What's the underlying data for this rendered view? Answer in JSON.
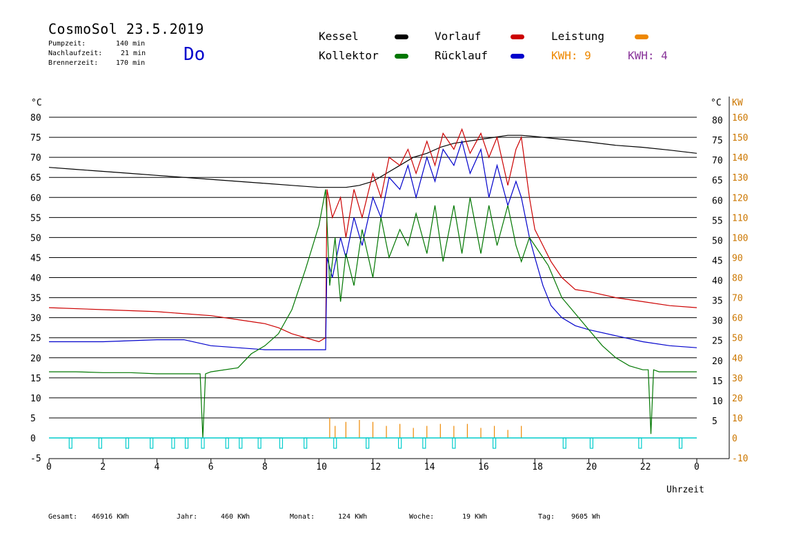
{
  "header": {
    "title": "CosmoSol 23.5.2019",
    "pump_label": "Pumpzeit:",
    "pump_value": "140 min",
    "nach_label": "Nachlaufzeit:",
    "nach_value": "21 min",
    "brenner_label": "Brennerzeit:",
    "brenner_value": "170 min",
    "day": "Do"
  },
  "legend": {
    "kessel": "Kessel",
    "kollektor": "Kollektor",
    "vorlauf": "Vorlauf",
    "ruecklauf": "Rücklauf",
    "leistung": "Leistung",
    "kwh1": "KWH: 9",
    "kwh2": "KWH: 4"
  },
  "colors": {
    "kessel": "#000000",
    "kollektor": "#007700",
    "vorlauf": "#cc0000",
    "ruecklauf": "#0000cc",
    "leistung": "#ee8800",
    "kwh2": "#883399",
    "pump": "#00cccc"
  },
  "footer": {
    "gesamt_label": "Gesamt:",
    "gesamt_value": "46916 KWh",
    "jahr_label": "Jahr:",
    "jahr_value": "460 KWh",
    "monat_label": "Monat:",
    "monat_value": "124 KWh",
    "woche_label": "Woche:",
    "woche_value": "19 KWh",
    "tag_label": "Tag:",
    "tag_value": "9605 Wh"
  },
  "chart_data": {
    "type": "line",
    "xlabel": "Uhrzeit",
    "ylabel_left": "°C",
    "ylabel_right_c": "°C",
    "ylabel_right_kw": "KW",
    "x_ticks": [
      "0",
      "2",
      "4",
      "6",
      "8",
      "10",
      "12",
      "14",
      "16",
      "18",
      "20",
      "22",
      "0"
    ],
    "xlim": [
      0,
      24
    ],
    "ylim": [
      -5,
      80
    ],
    "y_ticks_left": [
      80,
      75,
      70,
      65,
      60,
      55,
      50,
      45,
      40,
      35,
      30,
      25,
      20,
      15,
      10,
      5,
      0,
      -5
    ],
    "y_ticks_right_c": [
      80,
      75,
      70,
      65,
      60,
      55,
      50,
      45,
      40,
      35,
      30,
      25,
      20,
      15,
      10,
      5
    ],
    "y_ticks_right_kw": [
      160,
      150,
      140,
      130,
      120,
      110,
      100,
      90,
      80,
      70,
      60,
      50,
      40,
      30,
      20,
      10,
      0,
      -10
    ],
    "grid": true,
    "series": [
      {
        "name": "Kessel",
        "x": [
          0,
          1,
          2,
          3,
          4,
          5,
          6,
          7,
          8,
          9,
          10,
          10.5,
          11,
          11.5,
          12,
          12.5,
          13,
          13.5,
          14,
          14.5,
          15,
          15.5,
          16,
          16.5,
          17,
          17.5,
          18,
          19,
          20,
          21,
          22,
          23,
          24
        ],
        "values": [
          67.5,
          67,
          66.5,
          66,
          65.5,
          65,
          64.5,
          64,
          63.5,
          63,
          62.5,
          62.5,
          62.5,
          63,
          64,
          66,
          68,
          70,
          71,
          72.5,
          73.5,
          74,
          74.5,
          75,
          75.5,
          75.5,
          75.2,
          74.5,
          73.8,
          73,
          72.5,
          71.8,
          71
        ]
      },
      {
        "name": "Vorlauf",
        "x": [
          0,
          2,
          4,
          6,
          7,
          8,
          8.5,
          9,
          9.5,
          10,
          10.25,
          10.3,
          10.5,
          10.8,
          11,
          11.3,
          11.6,
          12,
          12.3,
          12.6,
          13,
          13.3,
          13.6,
          14,
          14.3,
          14.6,
          15,
          15.3,
          15.6,
          16,
          16.3,
          16.6,
          17,
          17.3,
          17.5,
          17.8,
          18,
          18.3,
          18.6,
          19,
          19.5,
          20,
          21,
          22,
          23,
          24
        ],
        "values": [
          32.5,
          32,
          31.5,
          30.5,
          29.5,
          28.5,
          27.5,
          26,
          25,
          24,
          25,
          62,
          55,
          60,
          50,
          62,
          55,
          66,
          60,
          70,
          68,
          72,
          66,
          74,
          68,
          76,
          72,
          77,
          71,
          76,
          70,
          75,
          63,
          72,
          75,
          60,
          52,
          48,
          44,
          40,
          37,
          36.5,
          35,
          34,
          33,
          32.5
        ]
      },
      {
        "name": "Rücklauf",
        "x": [
          0,
          2,
          4,
          5,
          6,
          7,
          8,
          9,
          10,
          10.25,
          10.3,
          10.5,
          10.8,
          11,
          11.3,
          11.6,
          12,
          12.3,
          12.6,
          13,
          13.3,
          13.6,
          14,
          14.3,
          14.6,
          15,
          15.3,
          15.6,
          16,
          16.3,
          16.6,
          17,
          17.3,
          17.5,
          17.8,
          18,
          18.3,
          18.6,
          19,
          19.5,
          20,
          21,
          22,
          23,
          24
        ],
        "values": [
          24,
          24,
          24.5,
          24.5,
          23,
          22.5,
          22,
          22,
          22,
          22,
          45,
          40,
          50,
          45,
          55,
          48,
          60,
          55,
          65,
          62,
          68,
          60,
          70,
          64,
          72,
          68,
          74,
          66,
          72,
          60,
          68,
          58,
          64,
          60,
          50,
          45,
          38,
          33,
          30,
          28,
          27,
          25.5,
          24,
          23,
          22.5
        ]
      },
      {
        "name": "Kollektor",
        "x": [
          0,
          1,
          2,
          3,
          4,
          5,
          5.6,
          5.7,
          5.8,
          6,
          7,
          7.5,
          8,
          8.5,
          9,
          9.5,
          10,
          10.25,
          10.4,
          10.6,
          10.8,
          11,
          11.3,
          11.6,
          12,
          12.3,
          12.6,
          13,
          13.3,
          13.6,
          14,
          14.3,
          14.6,
          15,
          15.3,
          15.6,
          16,
          16.3,
          16.6,
          17,
          17.3,
          17.5,
          17.8,
          18,
          18.5,
          19,
          19.5,
          20,
          20.5,
          21,
          21.5,
          22,
          22.2,
          22.3,
          22.4,
          22.6,
          23,
          24
        ],
        "values": [
          16.5,
          16.5,
          16.3,
          16.3,
          16,
          16,
          16,
          0,
          16,
          16.5,
          17.5,
          21,
          23,
          26,
          32,
          42,
          53,
          62,
          38,
          50,
          34,
          46,
          38,
          52,
          40,
          55,
          45,
          52,
          48,
          56,
          46,
          58,
          44,
          58,
          46,
          60,
          46,
          58,
          48,
          58,
          48,
          44,
          50,
          48,
          43,
          35,
          31,
          27,
          23,
          20,
          18,
          17,
          17,
          1,
          17,
          16.5,
          16.5,
          16.5
        ]
      },
      {
        "name": "Leistung",
        "x": [
          10.4,
          10.6,
          11,
          11.5,
          12,
          12.5,
          13,
          13.5,
          14,
          14.5,
          15,
          15.5,
          16,
          16.5,
          17,
          17.5
        ],
        "values": [
          5,
          3,
          4,
          4.5,
          4,
          3,
          3.5,
          2.5,
          3,
          3.5,
          3,
          3.5,
          2.5,
          3,
          2,
          3
        ]
      }
    ],
    "pump_pulses_hours": [
      0.8,
      1.9,
      2.9,
      3.8,
      4.6,
      5.1,
      5.7,
      6.6,
      7.1,
      7.8,
      8.6,
      9.5,
      10.6,
      11.8,
      13.0,
      13.9,
      15.0,
      16.5,
      19.1,
      20.1,
      21.9,
      23.4
    ]
  }
}
